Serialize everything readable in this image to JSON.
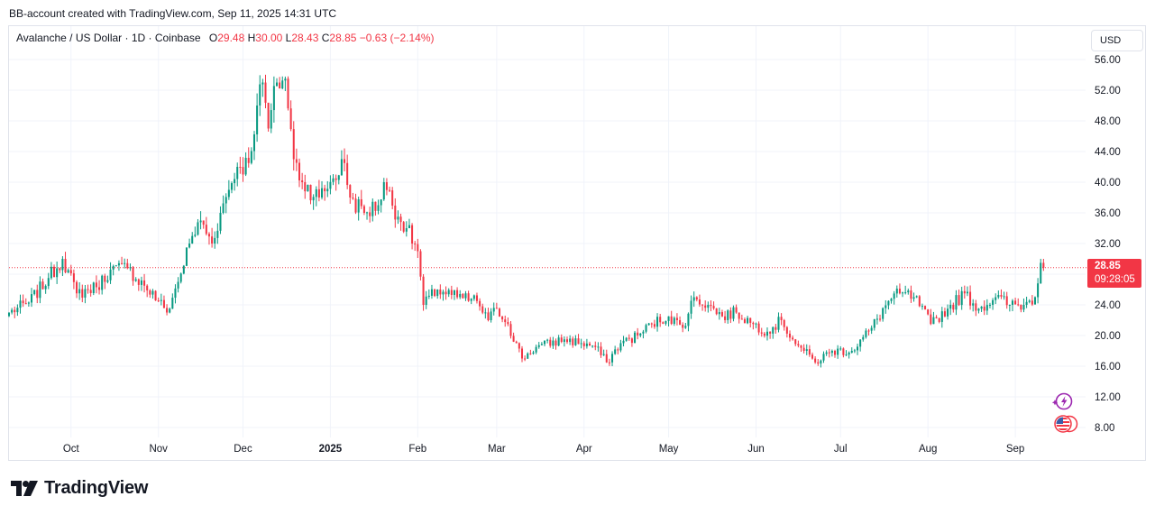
{
  "header": {
    "caption": "BB-account created with TradingView.com, Sep 11, 2025 14:31 UTC"
  },
  "legend": {
    "symbol": "Avalanche / US Dollar · 1D · Coinbase",
    "o_label": "O",
    "o_value": "29.48",
    "h_label": "H",
    "h_value": "30.00",
    "l_label": "L",
    "l_value": "28.43",
    "c_label": "C",
    "c_value": "28.85",
    "change": "−0.63 (−2.14%)"
  },
  "currency": "USD",
  "price_tag": {
    "price": "28.85",
    "countdown": "09:28:05"
  },
  "brand": {
    "name": "TradingView"
  },
  "colors": {
    "up": "#089981",
    "down": "#f23645",
    "grid": "#f0f3fa",
    "text": "#131722",
    "accent": "#9c27b0"
  },
  "icons": {
    "logo": "tradingview-logo-icon",
    "events": "lightning-event-icon",
    "flag": "us-flag-icon"
  },
  "chart_data": {
    "type": "candlestick",
    "title": "Avalanche / US Dollar · 1D · Coinbase",
    "y_axis_position": "right",
    "ylim": [
      6,
      59
    ],
    "yticks": [
      "56.00",
      "52.00",
      "48.00",
      "44.00",
      "40.00",
      "36.00",
      "32.00",
      "28.00",
      "24.00",
      "20.00",
      "16.00",
      "12.00",
      "8.00"
    ],
    "xlim": [
      "2024-09-09",
      "2025-09-24"
    ],
    "xticks": [
      {
        "label": "Oct",
        "date": "2024-10-01",
        "bold": false
      },
      {
        "label": "Nov",
        "date": "2024-11-01",
        "bold": false
      },
      {
        "label": "Dec",
        "date": "2024-12-01",
        "bold": false
      },
      {
        "label": "2025",
        "date": "2025-01-01",
        "bold": true
      },
      {
        "label": "Feb",
        "date": "2025-02-01",
        "bold": false
      },
      {
        "label": "Mar",
        "date": "2025-03-01",
        "bold": false
      },
      {
        "label": "Apr",
        "date": "2025-04-01",
        "bold": false
      },
      {
        "label": "May",
        "date": "2025-05-01",
        "bold": false
      },
      {
        "label": "Jun",
        "date": "2025-06-01",
        "bold": false
      },
      {
        "label": "Jul",
        "date": "2025-07-01",
        "bold": false
      },
      {
        "label": "Aug",
        "date": "2025-08-01",
        "bold": false
      },
      {
        "label": "Sep",
        "date": "2025-09-01",
        "bold": false
      }
    ],
    "grid": true,
    "last_price": 28.85,
    "first_date": "2024-09-09",
    "close_anchors": [
      [
        "2024-09-09",
        23.0
      ],
      [
        "2024-09-16",
        24.3
      ],
      [
        "2024-09-23",
        27.5
      ],
      [
        "2024-09-28",
        30.0
      ],
      [
        "2024-10-03",
        25.5
      ],
      [
        "2024-10-10",
        26.3
      ],
      [
        "2024-10-15",
        28.6
      ],
      [
        "2024-10-21",
        28.8
      ],
      [
        "2024-10-27",
        26.5
      ],
      [
        "2024-11-01",
        24.5
      ],
      [
        "2024-11-04",
        23.0
      ],
      [
        "2024-11-08",
        27.0
      ],
      [
        "2024-11-12",
        32.0
      ],
      [
        "2024-11-16",
        35.0
      ],
      [
        "2024-11-20",
        32.0
      ],
      [
        "2024-11-23",
        36.0
      ],
      [
        "2024-11-26",
        39.0
      ],
      [
        "2024-11-29",
        42.0
      ],
      [
        "2024-12-03",
        42.5
      ],
      [
        "2024-12-06",
        50.0
      ],
      [
        "2024-12-08",
        53.0
      ],
      [
        "2024-12-10",
        47.0
      ],
      [
        "2024-12-13",
        53.0
      ],
      [
        "2024-12-16",
        53.5
      ],
      [
        "2024-12-19",
        43.0
      ],
      [
        "2024-12-22",
        40.0
      ],
      [
        "2024-12-28",
        38.0
      ],
      [
        "2025-01-02",
        40.5
      ],
      [
        "2025-01-06",
        42.5
      ],
      [
        "2025-01-08",
        38.0
      ],
      [
        "2025-01-13",
        36.0
      ],
      [
        "2025-01-18",
        37.0
      ],
      [
        "2025-01-20",
        40.0
      ],
      [
        "2025-01-25",
        35.5
      ],
      [
        "2025-01-28",
        34.0
      ],
      [
        "2025-02-01",
        31.0
      ],
      [
        "2025-02-03",
        24.0
      ],
      [
        "2025-02-08",
        26.0
      ],
      [
        "2025-02-15",
        25.0
      ],
      [
        "2025-02-22",
        24.5
      ],
      [
        "2025-02-26",
        22.0
      ],
      [
        "2025-03-01",
        23.5
      ],
      [
        "2025-03-05",
        21.5
      ],
      [
        "2025-03-10",
        17.0
      ],
      [
        "2025-03-15",
        18.5
      ],
      [
        "2025-03-25",
        19.5
      ],
      [
        "2025-03-31",
        19.0
      ],
      [
        "2025-04-05",
        18.5
      ],
      [
        "2025-04-09",
        16.5
      ],
      [
        "2025-04-14",
        19.0
      ],
      [
        "2025-04-20",
        20.0
      ],
      [
        "2025-04-25",
        21.5
      ],
      [
        "2025-05-01",
        22.5
      ],
      [
        "2025-05-06",
        21.0
      ],
      [
        "2025-05-10",
        25.0
      ],
      [
        "2025-05-15",
        24.0
      ],
      [
        "2025-05-20",
        22.5
      ],
      [
        "2025-05-25",
        23.0
      ],
      [
        "2025-05-31",
        21.5
      ],
      [
        "2025-06-05",
        20.5
      ],
      [
        "2025-06-10",
        22.0
      ],
      [
        "2025-06-14",
        19.5
      ],
      [
        "2025-06-18",
        18.0
      ],
      [
        "2025-06-22",
        16.5
      ],
      [
        "2025-06-28",
        18.0
      ],
      [
        "2025-07-05",
        18.0
      ],
      [
        "2025-07-12",
        21.0
      ],
      [
        "2025-07-18",
        24.5
      ],
      [
        "2025-07-22",
        25.5
      ],
      [
        "2025-07-27",
        25.0
      ],
      [
        "2025-08-02",
        21.5
      ],
      [
        "2025-08-08",
        23.5
      ],
      [
        "2025-08-14",
        25.5
      ],
      [
        "2025-08-19",
        23.5
      ],
      [
        "2025-08-25",
        25.0
      ],
      [
        "2025-08-30",
        24.0
      ],
      [
        "2025-09-04",
        24.0
      ],
      [
        "2025-09-08",
        25.0
      ],
      [
        "2025-09-10",
        29.48
      ],
      [
        "2025-09-11",
        28.85
      ]
    ]
  }
}
